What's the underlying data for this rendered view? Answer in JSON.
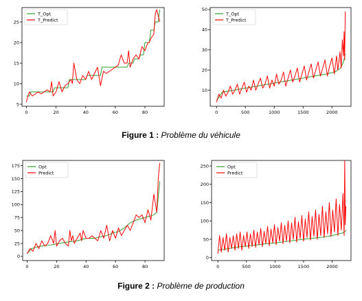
{
  "figures": [
    {
      "label": "Figure 1 :",
      "title": "Problème du véhicule"
    },
    {
      "label": "Figure 2 :",
      "title": "Problème de production"
    }
  ],
  "chart_data": [
    {
      "type": "line",
      "xlim": [
        -3,
        93
      ],
      "ylim": [
        4.5,
        28.5
      ],
      "xticks": [
        0,
        20,
        40,
        60,
        80
      ],
      "yticks": [
        5,
        10,
        15,
        20,
        25
      ],
      "legend": "top-left",
      "series": [
        {
          "name": "T_Opt",
          "color": "#2ca02c",
          "x": [
            0,
            2,
            3,
            10,
            11,
            18,
            19,
            28,
            29,
            40,
            41,
            50,
            51,
            60,
            61,
            68,
            69,
            72,
            73,
            76,
            77,
            79,
            80,
            83,
            84,
            86,
            87,
            89,
            90
          ],
          "y": [
            7,
            7,
            8,
            8,
            8,
            8,
            9,
            9,
            11,
            11,
            12,
            12,
            14,
            14,
            14,
            14,
            15,
            15,
            16,
            16,
            17,
            17,
            20,
            20,
            23,
            23,
            25,
            25,
            28
          ]
        },
        {
          "name": "T_Predict",
          "color": "#ff0000",
          "x": [
            0,
            1,
            2,
            4,
            6,
            8,
            10,
            12,
            14,
            16,
            17,
            18,
            20,
            22,
            24,
            26,
            28,
            30,
            31,
            32,
            34,
            36,
            38,
            40,
            42,
            44,
            46,
            48,
            50,
            52,
            54,
            56,
            58,
            60,
            62,
            64,
            66,
            68,
            69,
            70,
            72,
            74,
            76,
            78,
            80,
            82,
            83,
            84,
            86,
            87,
            88,
            90
          ],
          "y": [
            5.5,
            7,
            8,
            7,
            7.5,
            8,
            7.5,
            8,
            8.5,
            8,
            10.5,
            7,
            8,
            10.5,
            8,
            9.5,
            10,
            11,
            10,
            15,
            11,
            10,
            12,
            11,
            13,
            11,
            12.5,
            14,
            9.5,
            13,
            12.5,
            13,
            13.5,
            14,
            14.5,
            17,
            15,
            15,
            18,
            14,
            16,
            17,
            16,
            19,
            18,
            20,
            20,
            21,
            22,
            27,
            28,
            25
          ]
        }
      ]
    },
    {
      "type": "line",
      "xlim": [
        -110,
        2330
      ],
      "ylim": [
        2,
        51
      ],
      "xticks": [
        0,
        500,
        1000,
        1500,
        2000
      ],
      "yticks": [
        10,
        20,
        30,
        40,
        50
      ],
      "legend": "top-left",
      "series": [
        {
          "name": "T_Opt",
          "color": "#2ca02c",
          "x": [
            0,
            100,
            300,
            500,
            700,
            900,
            1100,
            1300,
            1500,
            1700,
            1900,
            2050,
            2150,
            2200,
            2230
          ],
          "y": [
            5,
            9,
            10,
            11,
            12,
            13,
            14,
            15,
            16,
            17,
            18,
            19,
            21,
            24,
            28
          ]
        },
        {
          "name": "T_Predict",
          "color": "#ff0000",
          "x": [
            0,
            40,
            80,
            120,
            160,
            200,
            240,
            280,
            320,
            360,
            400,
            440,
            480,
            520,
            560,
            600,
            640,
            680,
            720,
            760,
            800,
            840,
            880,
            920,
            960,
            1000,
            1040,
            1080,
            1120,
            1160,
            1200,
            1240,
            1280,
            1320,
            1360,
            1400,
            1440,
            1480,
            1520,
            1560,
            1600,
            1640,
            1680,
            1720,
            1760,
            1800,
            1840,
            1880,
            1920,
            1960,
            2000,
            2040,
            2080,
            2100,
            2120,
            2140,
            2160,
            2180,
            2200,
            2210,
            2220,
            2230
          ],
          "y": [
            4,
            8,
            6,
            10,
            7,
            9,
            12,
            8,
            10,
            13,
            8,
            11,
            14,
            9,
            12,
            10,
            15,
            10,
            13,
            16,
            11,
            13,
            17,
            11,
            15,
            12,
            18,
            13,
            15,
            19,
            12,
            16,
            20,
            14,
            17,
            21,
            14,
            18,
            22,
            15,
            19,
            23,
            16,
            20,
            24,
            17,
            21,
            25,
            17,
            22,
            26,
            18,
            27,
            20,
            24,
            29,
            21,
            35,
            27,
            39,
            25,
            49
          ]
        }
      ]
    },
    {
      "type": "line",
      "xlim": [
        -3,
        93
      ],
      "ylim": [
        -8,
        185
      ],
      "xticks": [
        0,
        20,
        40,
        60,
        80
      ],
      "yticks": [
        0,
        25,
        50,
        75,
        100,
        125,
        150,
        175
      ],
      "legend": "top-left",
      "series": [
        {
          "name": "Opt",
          "color": "#2ca02c",
          "x": [
            0,
            3,
            6,
            10,
            16,
            22,
            28,
            34,
            40,
            46,
            50,
            54,
            58,
            62,
            66,
            70,
            74,
            80,
            86,
            88,
            90
          ],
          "y": [
            5,
            15,
            18,
            20,
            22,
            25,
            28,
            30,
            35,
            35,
            38,
            40,
            45,
            48,
            55,
            65,
            70,
            75,
            80,
            85,
            145
          ]
        },
        {
          "name": "Predict",
          "color": "#ff0000",
          "x": [
            0,
            2,
            4,
            6,
            8,
            10,
            12,
            14,
            16,
            18,
            19,
            20,
            22,
            24,
            26,
            28,
            29,
            30,
            31,
            32,
            34,
            36,
            37,
            38,
            40,
            42,
            44,
            46,
            48,
            50,
            52,
            54,
            56,
            58,
            60,
            62,
            64,
            66,
            68,
            70,
            72,
            74,
            76,
            78,
            80,
            82,
            84,
            86,
            88,
            89,
            90
          ],
          "y": [
            5,
            15,
            10,
            25,
            15,
            30,
            20,
            25,
            40,
            25,
            50,
            20,
            30,
            35,
            25,
            20,
            50,
            30,
            40,
            25,
            35,
            45,
            30,
            50,
            35,
            35,
            40,
            35,
            30,
            50,
            35,
            60,
            30,
            50,
            35,
            55,
            40,
            50,
            60,
            50,
            65,
            80,
            75,
            80,
            65,
            90,
            70,
            120,
            85,
            150,
            180
          ]
        }
      ]
    },
    {
      "type": "line",
      "xlim": [
        -110,
        2330
      ],
      "ylim": [
        -8,
        265
      ],
      "xticks": [
        0,
        500,
        1000,
        1500,
        2000
      ],
      "yticks": [
        0,
        50,
        100,
        150,
        200,
        250
      ],
      "legend": "top-left",
      "series": [
        {
          "name": "Opt",
          "color": "#2ca02c",
          "x": [
            0,
            200,
            400,
            600,
            800,
            1000,
            1200,
            1400,
            1600,
            1800,
            2000,
            2200,
            2250
          ],
          "y": [
            20,
            25,
            30,
            33,
            37,
            40,
            44,
            48,
            52,
            55,
            60,
            68,
            75
          ]
        },
        {
          "name": "Predict",
          "color": "#ff0000",
          "x": [
            0,
            30,
            60,
            90,
            120,
            150,
            180,
            210,
            240,
            270,
            300,
            330,
            360,
            390,
            420,
            450,
            480,
            510,
            540,
            570,
            600,
            630,
            660,
            690,
            720,
            750,
            780,
            810,
            840,
            870,
            900,
            930,
            960,
            990,
            1020,
            1050,
            1080,
            1110,
            1140,
            1170,
            1200,
            1230,
            1260,
            1290,
            1320,
            1350,
            1380,
            1410,
            1440,
            1470,
            1500,
            1530,
            1560,
            1590,
            1620,
            1650,
            1680,
            1710,
            1740,
            1770,
            1800,
            1830,
            1860,
            1890,
            1920,
            1950,
            1980,
            2010,
            2040,
            2070,
            2100,
            2130,
            2160,
            2190,
            2210,
            2220,
            2230,
            2240
          ],
          "y": [
            10,
            60,
            15,
            55,
            20,
            65,
            15,
            55,
            25,
            60,
            20,
            65,
            25,
            70,
            20,
            60,
            30,
            70,
            25,
            65,
            30,
            75,
            28,
            70,
            35,
            80,
            30,
            72,
            38,
            85,
            32,
            78,
            40,
            90,
            35,
            82,
            45,
            95,
            38,
            88,
            45,
            100,
            40,
            95,
            50,
            110,
            42,
            98,
            52,
            115,
            45,
            105,
            55,
            125,
            48,
            112,
            58,
            130,
            50,
            118,
            60,
            140,
            55,
            125,
            65,
            150,
            58,
            130,
            70,
            160,
            60,
            145,
            75,
            175,
            60,
            265,
            90,
            140
          ]
        }
      ]
    }
  ]
}
